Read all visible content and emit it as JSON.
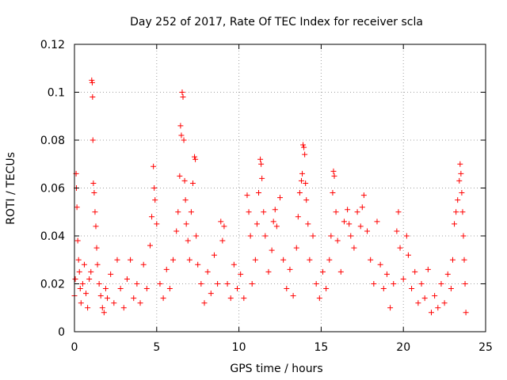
{
  "chart_data": {
    "type": "scatter",
    "title": "Day 252 of 2017, Rate Of TEC Index for receiver scla",
    "xlabel": "GPS time / hours",
    "ylabel": "ROTI / TECUs",
    "xlim": [
      0,
      25
    ],
    "ylim": [
      0,
      0.12
    ],
    "xticks": [
      0,
      5,
      10,
      15,
      20,
      25
    ],
    "xtick_labels": [
      "0",
      "5",
      "10",
      "15",
      "20",
      "25"
    ],
    "yticks": [
      0,
      0.02,
      0.04,
      0.06,
      0.08,
      0.1,
      0.12
    ],
    "ytick_labels": [
      "0",
      "0.02",
      "0.04",
      "0.06",
      "0.08",
      "0.1",
      "0.12"
    ],
    "grid": true,
    "marker": "plus",
    "marker_color": "#ff0000",
    "series": [
      {
        "name": "ROTI",
        "points": [
          [
            0.0,
            0.015
          ],
          [
            0.05,
            0.022
          ],
          [
            0.1,
            0.066
          ],
          [
            0.12,
            0.06
          ],
          [
            0.15,
            0.052
          ],
          [
            0.2,
            0.038
          ],
          [
            0.25,
            0.03
          ],
          [
            0.3,
            0.025
          ],
          [
            0.35,
            0.018
          ],
          [
            0.4,
            0.012
          ],
          [
            0.5,
            0.02
          ],
          [
            0.6,
            0.028
          ],
          [
            0.7,
            0.016
          ],
          [
            0.8,
            0.01
          ],
          [
            0.9,
            0.022
          ],
          [
            1.0,
            0.025
          ],
          [
            1.05,
            0.105
          ],
          [
            1.08,
            0.104
          ],
          [
            1.1,
            0.098
          ],
          [
            1.12,
            0.08
          ],
          [
            1.15,
            0.062
          ],
          [
            1.2,
            0.058
          ],
          [
            1.25,
            0.05
          ],
          [
            1.3,
            0.044
          ],
          [
            1.35,
            0.035
          ],
          [
            1.4,
            0.028
          ],
          [
            1.5,
            0.02
          ],
          [
            1.6,
            0.015
          ],
          [
            1.7,
            0.01
          ],
          [
            1.8,
            0.008
          ],
          [
            1.9,
            0.018
          ],
          [
            2.0,
            0.014
          ],
          [
            2.2,
            0.024
          ],
          [
            2.4,
            0.012
          ],
          [
            2.6,
            0.03
          ],
          [
            2.8,
            0.018
          ],
          [
            3.0,
            0.01
          ],
          [
            3.2,
            0.022
          ],
          [
            3.4,
            0.03
          ],
          [
            3.6,
            0.014
          ],
          [
            3.8,
            0.02
          ],
          [
            4.0,
            0.012
          ],
          [
            4.2,
            0.028
          ],
          [
            4.4,
            0.018
          ],
          [
            4.6,
            0.036
          ],
          [
            4.7,
            0.048
          ],
          [
            4.8,
            0.069
          ],
          [
            4.85,
            0.06
          ],
          [
            4.9,
            0.055
          ],
          [
            5.0,
            0.045
          ],
          [
            5.2,
            0.02
          ],
          [
            5.4,
            0.014
          ],
          [
            5.6,
            0.026
          ],
          [
            5.8,
            0.018
          ],
          [
            6.0,
            0.03
          ],
          [
            6.2,
            0.042
          ],
          [
            6.3,
            0.05
          ],
          [
            6.4,
            0.065
          ],
          [
            6.45,
            0.086
          ],
          [
            6.5,
            0.082
          ],
          [
            6.55,
            0.1
          ],
          [
            6.6,
            0.098
          ],
          [
            6.65,
            0.08
          ],
          [
            6.7,
            0.063
          ],
          [
            6.75,
            0.055
          ],
          [
            6.8,
            0.045
          ],
          [
            6.9,
            0.038
          ],
          [
            7.0,
            0.03
          ],
          [
            7.1,
            0.05
          ],
          [
            7.2,
            0.062
          ],
          [
            7.3,
            0.073
          ],
          [
            7.35,
            0.072
          ],
          [
            7.4,
            0.04
          ],
          [
            7.5,
            0.028
          ],
          [
            7.7,
            0.02
          ],
          [
            7.9,
            0.012
          ],
          [
            8.1,
            0.025
          ],
          [
            8.3,
            0.016
          ],
          [
            8.5,
            0.032
          ],
          [
            8.7,
            0.02
          ],
          [
            8.9,
            0.046
          ],
          [
            9.0,
            0.038
          ],
          [
            9.1,
            0.044
          ],
          [
            9.3,
            0.02
          ],
          [
            9.5,
            0.014
          ],
          [
            9.7,
            0.028
          ],
          [
            9.9,
            0.018
          ],
          [
            10.1,
            0.024
          ],
          [
            10.3,
            0.014
          ],
          [
            10.5,
            0.057
          ],
          [
            10.6,
            0.05
          ],
          [
            10.7,
            0.04
          ],
          [
            10.8,
            0.02
          ],
          [
            11.0,
            0.03
          ],
          [
            11.1,
            0.045
          ],
          [
            11.2,
            0.058
          ],
          [
            11.3,
            0.072
          ],
          [
            11.35,
            0.07
          ],
          [
            11.4,
            0.064
          ],
          [
            11.5,
            0.05
          ],
          [
            11.6,
            0.04
          ],
          [
            11.8,
            0.025
          ],
          [
            12.0,
            0.034
          ],
          [
            12.1,
            0.046
          ],
          [
            12.2,
            0.051
          ],
          [
            12.3,
            0.044
          ],
          [
            12.5,
            0.056
          ],
          [
            12.7,
            0.03
          ],
          [
            12.9,
            0.018
          ],
          [
            13.1,
            0.026
          ],
          [
            13.3,
            0.015
          ],
          [
            13.5,
            0.035
          ],
          [
            13.6,
            0.048
          ],
          [
            13.7,
            0.058
          ],
          [
            13.8,
            0.063
          ],
          [
            13.85,
            0.066
          ],
          [
            13.9,
            0.078
          ],
          [
            13.95,
            0.077
          ],
          [
            14.0,
            0.074
          ],
          [
            14.05,
            0.062
          ],
          [
            14.1,
            0.055
          ],
          [
            14.2,
            0.045
          ],
          [
            14.3,
            0.03
          ],
          [
            14.5,
            0.04
          ],
          [
            14.7,
            0.02
          ],
          [
            14.9,
            0.014
          ],
          [
            15.1,
            0.025
          ],
          [
            15.3,
            0.018
          ],
          [
            15.5,
            0.03
          ],
          [
            15.6,
            0.04
          ],
          [
            15.7,
            0.058
          ],
          [
            15.75,
            0.067
          ],
          [
            15.8,
            0.065
          ],
          [
            15.9,
            0.05
          ],
          [
            16.0,
            0.038
          ],
          [
            16.2,
            0.025
          ],
          [
            16.4,
            0.046
          ],
          [
            16.6,
            0.051
          ],
          [
            16.7,
            0.045
          ],
          [
            16.8,
            0.04
          ],
          [
            17.0,
            0.035
          ],
          [
            17.2,
            0.05
          ],
          [
            17.4,
            0.044
          ],
          [
            17.5,
            0.052
          ],
          [
            17.6,
            0.057
          ],
          [
            17.8,
            0.042
          ],
          [
            18.0,
            0.03
          ],
          [
            18.2,
            0.02
          ],
          [
            18.4,
            0.046
          ],
          [
            18.6,
            0.028
          ],
          [
            18.8,
            0.018
          ],
          [
            19.0,
            0.024
          ],
          [
            19.2,
            0.01
          ],
          [
            19.4,
            0.02
          ],
          [
            19.6,
            0.042
          ],
          [
            19.7,
            0.05
          ],
          [
            19.8,
            0.035
          ],
          [
            20.0,
            0.022
          ],
          [
            20.2,
            0.04
          ],
          [
            20.3,
            0.032
          ],
          [
            20.5,
            0.018
          ],
          [
            20.7,
            0.025
          ],
          [
            20.9,
            0.012
          ],
          [
            21.1,
            0.02
          ],
          [
            21.3,
            0.014
          ],
          [
            21.5,
            0.026
          ],
          [
            21.7,
            0.008
          ],
          [
            21.9,
            0.015
          ],
          [
            22.1,
            0.01
          ],
          [
            22.3,
            0.02
          ],
          [
            22.5,
            0.012
          ],
          [
            22.7,
            0.024
          ],
          [
            22.9,
            0.018
          ],
          [
            23.0,
            0.03
          ],
          [
            23.1,
            0.045
          ],
          [
            23.2,
            0.05
          ],
          [
            23.3,
            0.055
          ],
          [
            23.4,
            0.063
          ],
          [
            23.45,
            0.07
          ],
          [
            23.5,
            0.066
          ],
          [
            23.55,
            0.058
          ],
          [
            23.6,
            0.05
          ],
          [
            23.65,
            0.04
          ],
          [
            23.7,
            0.03
          ],
          [
            23.75,
            0.02
          ],
          [
            23.8,
            0.008
          ]
        ]
      }
    ]
  }
}
